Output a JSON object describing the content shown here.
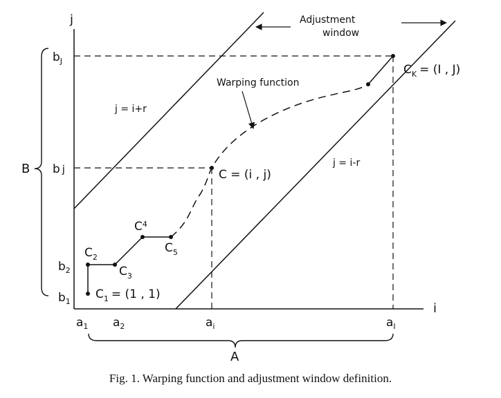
{
  "axes": {
    "x_label": "i",
    "y_label": "j"
  },
  "x_ticks": [
    {
      "main": "a",
      "sub": "1"
    },
    {
      "main": "a",
      "sub": "2"
    },
    {
      "main": "a",
      "sub": "i"
    },
    {
      "main": "a",
      "sub": "I"
    }
  ],
  "y_ticks": [
    {
      "main": "b",
      "sub": "1"
    },
    {
      "main": "b",
      "sub": "2"
    },
    {
      "main": "b",
      "sub": "j"
    },
    {
      "main": "b",
      "sub": "J"
    }
  ],
  "brace_x_label": "A",
  "brace_y_label": "B",
  "points": {
    "c1": {
      "main": "C",
      "sub": "1",
      "coord": "= (1 , 1)"
    },
    "c2": {
      "main": "C",
      "sub": "2"
    },
    "c3": {
      "main": "C",
      "sub": "3"
    },
    "c4": {
      "main": "C",
      "sub": "4"
    },
    "c5": {
      "main": "C",
      "sub": "5"
    },
    "c": {
      "text": "C = (i , j)"
    },
    "ck": {
      "main": "C",
      "sub": "K",
      "coord": "= (I , J)"
    }
  },
  "lines": {
    "upper": "j = i+r",
    "lower": "j = i-r"
  },
  "annotations": {
    "warping": "Warping function",
    "window_line1": "Adjustment",
    "window_line2": "window"
  },
  "caption": "Fig. 1.  Warping function and adjustment window definition."
}
